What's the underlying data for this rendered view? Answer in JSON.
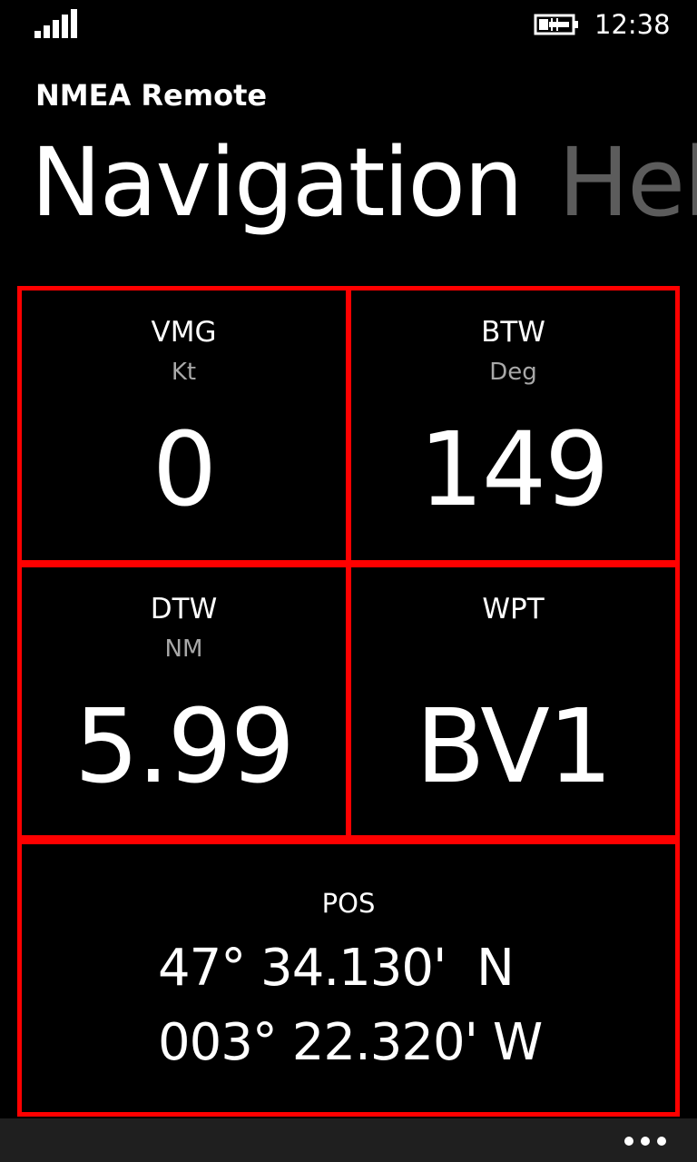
{
  "status_bar": {
    "time": "12:38",
    "signal_icon": "signal-strength-icon",
    "battery_icon": "battery-charging-icon"
  },
  "app": {
    "title": "NMEA Remote"
  },
  "pivot": {
    "active": "Navigation",
    "next": "Hel"
  },
  "tiles": {
    "vmg": {
      "label": "VMG",
      "unit": "Kt",
      "value": "0"
    },
    "btw": {
      "label": "BTW",
      "unit": "Deg",
      "value": "149"
    },
    "dtw": {
      "label": "DTW",
      "unit": "NM",
      "value": "5.99"
    },
    "wpt": {
      "label": "WPT",
      "unit": "",
      "value": "BV1"
    },
    "pos": {
      "label": "POS",
      "lat": "47° 34.130'  N",
      "lon": "003° 22.320' W"
    }
  },
  "colors": {
    "tile_border": "#ff0000",
    "background": "#000000",
    "unit_text": "#a8a8a8",
    "pivot_inactive": "#5c5c5c",
    "app_bar": "#1f1f1f"
  },
  "app_bar": {
    "more_icon": "more-ellipsis-icon"
  }
}
